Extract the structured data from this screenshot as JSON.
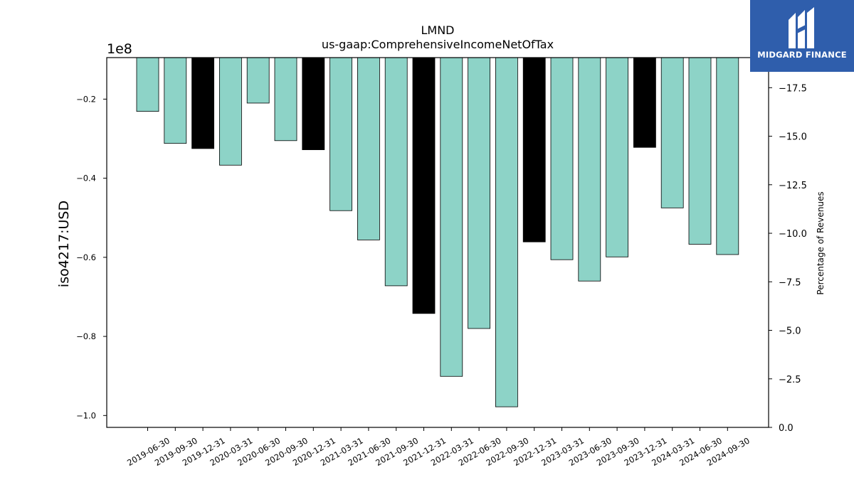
{
  "chart_data": {
    "type": "bar",
    "title": "LMND",
    "subtitle": "us-gaap:ComprehensiveIncomeNetOfTax",
    "ylabel": "iso4217:USD",
    "y2label": "Percentage of Revenues",
    "y_offset_label": "1e8",
    "ylim": [
      -1.03,
      -0.095
    ],
    "y_ticks": [
      -0.2,
      -0.4,
      -0.6,
      -0.8,
      -1.0
    ],
    "y_tick_labels": [
      "−0.2",
      "−0.4",
      "−0.6",
      "−0.8",
      "−1.0"
    ],
    "y2lim": [
      0.0,
      -19.05
    ],
    "y2_ticks": [
      -17.5,
      -15.0,
      -12.5,
      -10.0,
      -7.5,
      -5.0,
      -2.5,
      0.0
    ],
    "y2_tick_labels": [
      "−17.5",
      "−15.0",
      "−12.5",
      "−10.0",
      "−7.5",
      "−5.0",
      "−2.5",
      "0.0"
    ],
    "categories": [
      "2019-06-30",
      "2019-09-30",
      "2019-12-31",
      "2020-03-31",
      "2020-06-30",
      "2020-09-30",
      "2020-12-31",
      "2021-03-31",
      "2021-06-30",
      "2021-09-30",
      "2021-12-31",
      "2022-03-31",
      "2022-06-30",
      "2022-09-30",
      "2022-12-31",
      "2023-03-31",
      "2023-06-30",
      "2023-09-30",
      "2023-12-31",
      "2024-03-31",
      "2024-06-30",
      "2024-09-30"
    ],
    "values": [
      -0.231,
      -0.312,
      -0.325,
      -0.367,
      -0.21,
      -0.305,
      -0.328,
      -0.482,
      -0.556,
      -0.672,
      -0.742,
      -0.901,
      -0.78,
      -0.978,
      -0.561,
      -0.606,
      -0.66,
      -0.599,
      -0.322,
      -0.475,
      -0.567,
      -0.593
    ],
    "colors": [
      "#8dd3c7",
      "#8dd3c7",
      "#000000",
      "#8dd3c7",
      "#8dd3c7",
      "#8dd3c7",
      "#000000",
      "#8dd3c7",
      "#8dd3c7",
      "#8dd3c7",
      "#000000",
      "#8dd3c7",
      "#8dd3c7",
      "#8dd3c7",
      "#000000",
      "#8dd3c7",
      "#8dd3c7",
      "#8dd3c7",
      "#000000",
      "#8dd3c7",
      "#8dd3c7",
      "#8dd3c7"
    ],
    "grid": false,
    "legend": "none"
  },
  "logo": {
    "text": "MIDGARD FINANCE",
    "icon": "midgard-logo-icon",
    "background": "#2f5eac"
  }
}
